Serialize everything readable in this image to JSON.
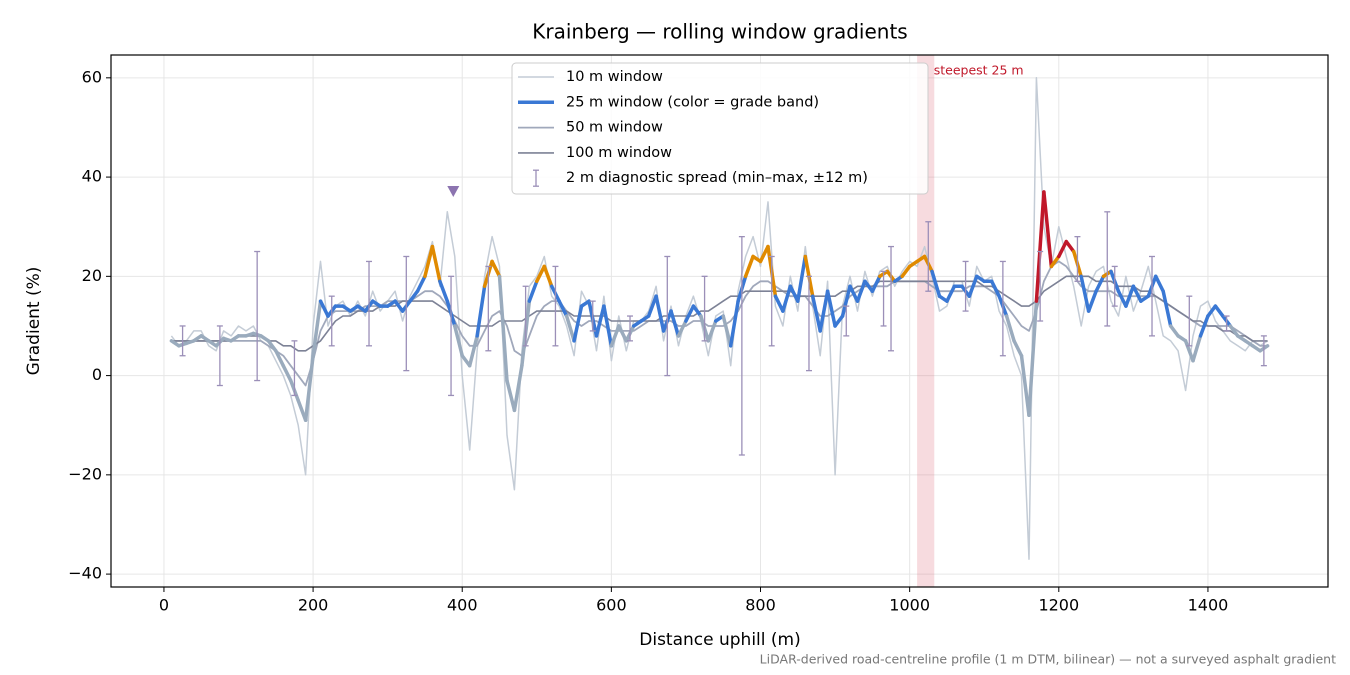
{
  "chart_data": {
    "type": "line",
    "title": "Krainberg — rolling window gradients",
    "xlabel": "Distance uphill (m)",
    "ylabel": "Gradient (%)",
    "footnote": "LiDAR-derived road-centreline profile (1 m DTM, bilinear) — not a surveyed asphalt gradient",
    "xlim": [
      -71,
      1561
    ],
    "ylim": [
      -42.6,
      64.6
    ],
    "xticks": [
      0,
      200,
      400,
      600,
      800,
      1000,
      1200,
      1400
    ],
    "yticks": [
      {
        "value": -40,
        "label": "−40"
      },
      {
        "value": -20,
        "label": "−20"
      },
      0,
      20,
      40,
      60
    ],
    "grid": true,
    "legend": "upper center",
    "x": [
      10,
      20,
      30,
      40,
      50,
      60,
      70,
      80,
      90,
      100,
      110,
      120,
      130,
      140,
      150,
      160,
      170,
      180,
      190,
      200,
      210,
      220,
      230,
      240,
      250,
      260,
      270,
      280,
      290,
      300,
      310,
      320,
      330,
      340,
      350,
      360,
      370,
      380,
      390,
      400,
      410,
      420,
      430,
      440,
      450,
      460,
      470,
      480,
      490,
      500,
      510,
      520,
      530,
      540,
      550,
      560,
      570,
      580,
      590,
      600,
      610,
      620,
      630,
      640,
      650,
      660,
      670,
      680,
      690,
      700,
      710,
      720,
      730,
      740,
      750,
      760,
      770,
      780,
      790,
      800,
      810,
      820,
      830,
      840,
      850,
      860,
      870,
      880,
      890,
      900,
      910,
      920,
      930,
      940,
      950,
      960,
      970,
      980,
      990,
      1000,
      1010,
      1020,
      1030,
      1040,
      1050,
      1060,
      1070,
      1080,
      1090,
      1100,
      1110,
      1120,
      1130,
      1140,
      1150,
      1160,
      1170,
      1180,
      1190,
      1200,
      1210,
      1220,
      1230,
      1240,
      1250,
      1260,
      1270,
      1280,
      1290,
      1300,
      1310,
      1320,
      1330,
      1340,
      1350,
      1360,
      1370,
      1380,
      1390,
      1400,
      1410,
      1420,
      1430,
      1440,
      1450,
      1460,
      1470,
      1480
    ],
    "series": [
      {
        "name": "10 m window",
        "color": "#c4ccd6",
        "width": 1.5,
        "values": [
          8,
          6,
          7,
          9,
          9,
          6,
          5,
          9,
          8,
          10,
          9,
          10,
          7,
          6,
          3,
          0,
          -4,
          -10,
          -20,
          10,
          23,
          10,
          14,
          15,
          12,
          15,
          12,
          17,
          13,
          15,
          17,
          11,
          16,
          19,
          22,
          27,
          18,
          33,
          24,
          0,
          -15,
          5,
          20,
          28,
          22,
          -12,
          -23,
          5,
          18,
          20,
          24,
          16,
          14,
          10,
          4,
          17,
          14,
          5,
          16,
          3,
          12,
          5,
          11,
          11,
          13,
          18,
          7,
          14,
          6,
          12,
          16,
          11,
          4,
          12,
          13,
          2,
          17,
          24,
          28,
          22,
          35,
          14,
          10,
          20,
          13,
          26,
          14,
          4,
          19,
          -20,
          14,
          20,
          13,
          21,
          16,
          21,
          22,
          18,
          21,
          23,
          22,
          26,
          20,
          13,
          14,
          19,
          19,
          14,
          22,
          19,
          20,
          13,
          10,
          4,
          0,
          -37,
          60,
          30,
          22,
          30,
          24,
          18,
          10,
          18,
          21,
          22,
          15,
          12,
          20,
          13,
          17,
          22,
          15,
          8,
          7,
          5,
          -3,
          8,
          14,
          15,
          11,
          9,
          7,
          6,
          5,
          7,
          6,
          7
        ]
      },
      {
        "name": "25 m window (color = grade band)",
        "color": "#3a78d4",
        "width": 3.5,
        "values": [
          7,
          6,
          6.5,
          7,
          8,
          7,
          6,
          7.5,
          7,
          8,
          8,
          8.5,
          8,
          7,
          5,
          2,
          -1,
          -5,
          -9,
          4,
          15,
          12,
          14,
          14,
          13,
          14,
          13,
          15,
          14,
          14,
          15,
          13,
          15,
          17,
          20,
          26,
          19,
          15,
          10,
          4,
          2,
          8,
          18,
          23,
          20,
          -1,
          -7,
          2,
          15,
          19,
          22,
          18,
          15,
          12,
          7,
          14,
          15,
          8,
          14,
          6,
          10,
          7,
          10,
          11,
          12,
          16,
          9,
          13,
          8,
          11,
          14,
          12,
          7,
          11,
          12,
          6,
          15,
          20,
          24,
          23,
          26,
          16,
          13,
          18,
          15,
          24,
          16,
          9,
          17,
          10,
          12,
          18,
          15,
          19,
          17,
          20,
          21,
          19,
          20,
          22,
          23,
          24,
          21,
          16,
          15,
          18,
          18,
          16,
          20,
          19,
          19,
          16,
          12,
          7,
          4,
          -8,
          15,
          37,
          22,
          24,
          27,
          25,
          20,
          13,
          17,
          20,
          21,
          17,
          14,
          18,
          15,
          16,
          20,
          17,
          10,
          8,
          7,
          3,
          8,
          12,
          14,
          12,
          10,
          8,
          7,
          6,
          5,
          6
        ],
        "grade_bands": {
          "limits": [
            10,
            20,
            25
          ],
          "colors": [
            "#9aabbd",
            "#3a78d4",
            "#e08a00",
            "#c0182a"
          ]
        }
      },
      {
        "name": "50 m window",
        "color": "#a0a8bb",
        "width": 1.8,
        "values": [
          7,
          7,
          7,
          7,
          7,
          7,
          7,
          7,
          7,
          7,
          7,
          7,
          7,
          6,
          5,
          4,
          2,
          0,
          -2,
          3,
          9,
          12,
          13,
          13,
          13,
          13,
          14,
          14,
          14,
          15,
          15,
          15,
          15,
          16,
          17,
          17,
          16,
          14,
          11,
          8,
          6,
          6,
          9,
          12,
          13,
          10,
          5,
          4,
          8,
          12,
          14,
          15,
          15,
          13,
          11,
          10,
          11,
          11,
          10,
          9,
          9,
          9,
          9,
          10,
          11,
          11,
          11,
          11,
          10,
          10,
          11,
          11,
          10,
          10,
          10,
          11,
          13,
          16,
          18,
          19,
          19,
          18,
          17,
          16,
          16,
          16,
          14,
          12,
          12,
          13,
          14,
          16,
          17,
          18,
          18,
          18,
          18,
          19,
          19,
          19,
          19,
          19,
          18,
          17,
          17,
          17,
          17,
          18,
          18,
          18,
          17,
          16,
          14,
          12,
          10,
          9,
          13,
          19,
          22,
          23,
          22,
          20,
          18,
          17,
          17,
          17,
          17,
          16,
          16,
          16,
          16,
          16,
          16,
          15,
          14,
          13,
          12,
          11,
          10,
          10,
          10,
          10,
          10,
          9,
          8,
          7,
          6,
          6
        ]
      },
      {
        "name": "100 m window",
        "color": "#7d8296",
        "width": 1.6,
        "values": [
          7,
          7,
          7,
          7,
          7,
          7,
          7,
          7,
          7,
          8,
          8,
          8,
          8,
          7,
          7,
          6,
          6,
          5,
          5,
          6,
          7,
          9,
          11,
          12,
          12,
          13,
          13,
          13,
          14,
          14,
          14,
          15,
          15,
          15,
          15,
          15,
          14,
          13,
          12,
          11,
          10,
          10,
          10,
          10,
          11,
          11,
          11,
          11,
          12,
          13,
          13,
          13,
          13,
          13,
          12,
          12,
          12,
          12,
          12,
          11,
          11,
          11,
          11,
          11,
          11,
          11,
          12,
          12,
          12,
          12,
          12,
          13,
          13,
          14,
          15,
          16,
          16,
          17,
          17,
          17,
          17,
          17,
          17,
          17,
          16,
          16,
          16,
          16,
          16,
          16,
          17,
          17,
          18,
          18,
          18,
          19,
          19,
          19,
          19,
          19,
          19,
          19,
          19,
          19,
          19,
          19,
          19,
          19,
          19,
          18,
          18,
          17,
          16,
          15,
          14,
          14,
          15,
          17,
          18,
          19,
          20,
          20,
          20,
          20,
          19,
          19,
          19,
          18,
          18,
          18,
          17,
          17,
          16,
          15,
          14,
          13,
          12,
          11,
          11,
          10,
          10,
          9,
          9,
          8,
          8,
          7,
          7,
          7
        ]
      }
    ],
    "spread": {
      "name": "2 m diagnostic spread (min–max, ±12 m)",
      "color": "#9b8fb8",
      "x": [
        25,
        75,
        125,
        175,
        225,
        275,
        325,
        385,
        435,
        485,
        525,
        575,
        625,
        675,
        725,
        775,
        815,
        865,
        915,
        965,
        975,
        1025,
        1075,
        1125,
        1175,
        1225,
        1265,
        1275,
        1325,
        1375,
        1425,
        1475
      ],
      "low": [
        4,
        -2,
        -1,
        -4,
        6,
        6,
        1,
        -4,
        5,
        6,
        6,
        9,
        7,
        0,
        7,
        -16,
        6,
        1,
        8,
        10,
        5,
        17,
        13,
        4,
        11,
        19,
        10,
        14,
        8,
        6,
        9,
        2
      ],
      "high": [
        10,
        10,
        25,
        7,
        16,
        23,
        24,
        20,
        22,
        18,
        22,
        15,
        12,
        24,
        20,
        28,
        24,
        20,
        14,
        21,
        26,
        31,
        23,
        23,
        25,
        28,
        33,
        22,
        24,
        16,
        12,
        8
      ]
    },
    "marker": {
      "x": 388,
      "y": 37,
      "color": "#8c74b0"
    },
    "highlight": {
      "x": [
        1010,
        1033
      ],
      "label": "steepest 25 m",
      "color": "#e07080",
      "text_color": "#c0182a"
    }
  }
}
